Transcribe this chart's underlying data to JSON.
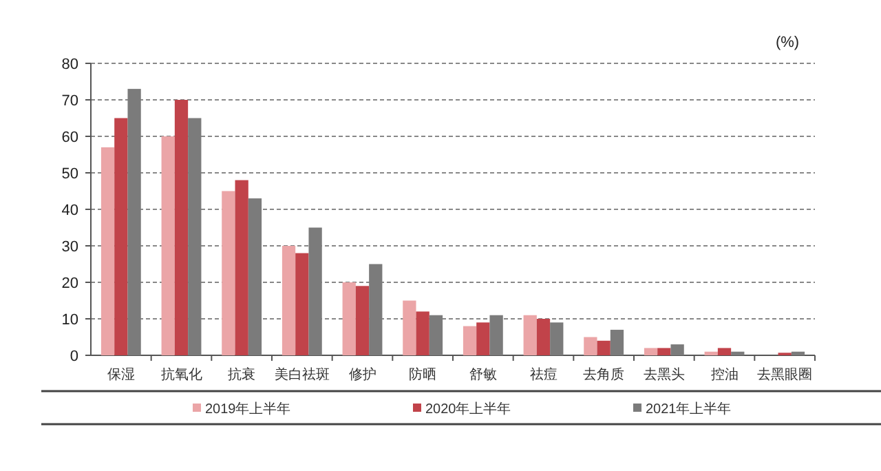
{
  "chart_data": {
    "type": "bar",
    "ylabel": "(%)",
    "categories": [
      "保湿",
      "抗氧化",
      "抗衰",
      "美白祛斑",
      "修护",
      "防晒",
      "舒敏",
      "祛痘",
      "去角质",
      "去黑头",
      "控油",
      "去黑眼圈"
    ],
    "series": [
      {
        "name": "2019年上半年",
        "color": "#eba5a7",
        "values": [
          57,
          60,
          45,
          30,
          20,
          15,
          8,
          11,
          5,
          2,
          1,
          null
        ]
      },
      {
        "name": "2020年上半年",
        "color": "#c1434a",
        "values": [
          65,
          70,
          48,
          28,
          19,
          12,
          9,
          10,
          4,
          2,
          2,
          0.7
        ]
      },
      {
        "name": "2021年上半年",
        "color": "#7b7b7b",
        "values": [
          73,
          65,
          43,
          35,
          25,
          11,
          11,
          9,
          7,
          3,
          1,
          1
        ]
      }
    ],
    "ylim": [
      0,
      80
    ],
    "yticks": [
      0,
      10,
      20,
      30,
      40,
      50,
      60,
      70,
      80
    ],
    "grid": "y",
    "legend": "bottom"
  }
}
